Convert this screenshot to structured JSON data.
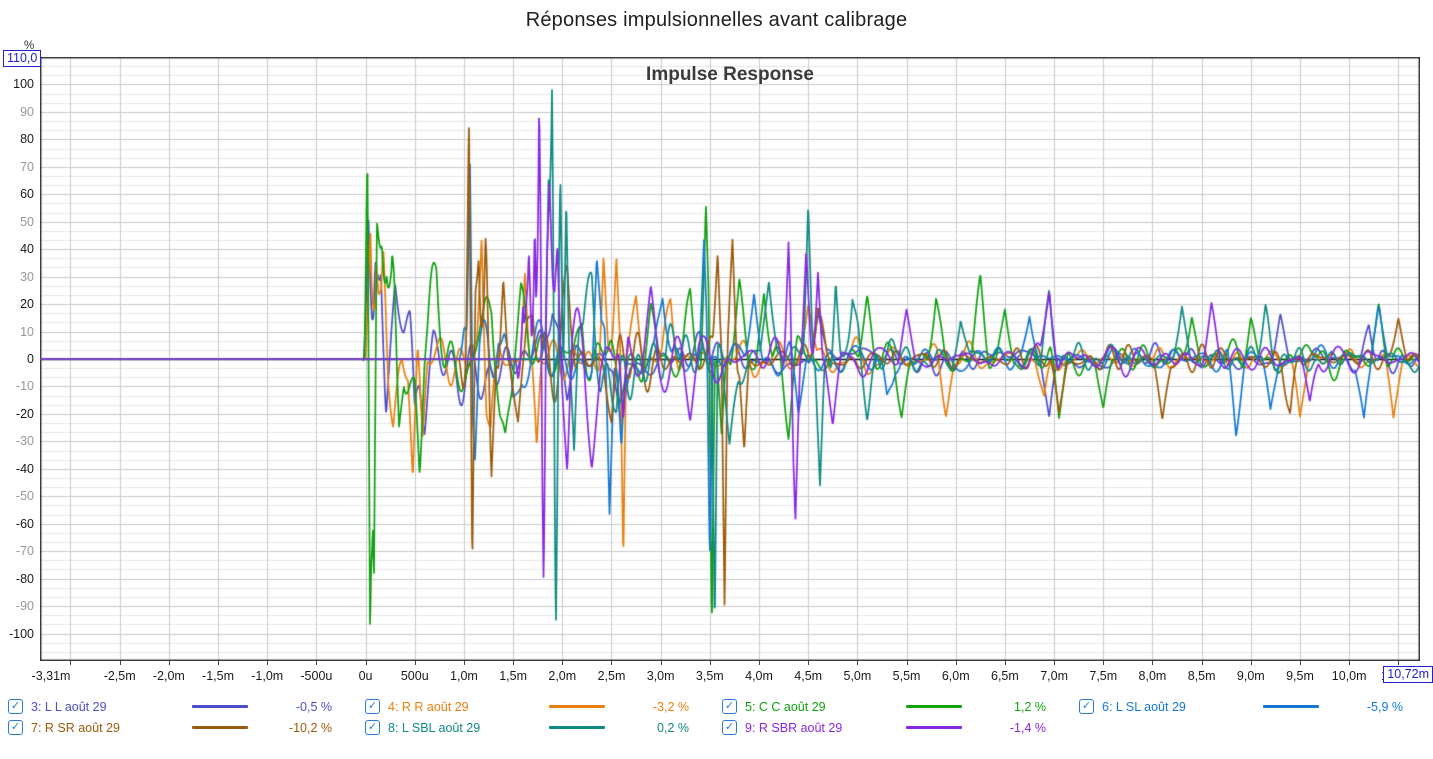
{
  "page": {
    "title": "Réponses impulsionnelles avant calibrage"
  },
  "axis_fields": {
    "y_max": "110,0",
    "x_max": "10,72m"
  },
  "legend": {
    "check_glyph": "✓",
    "checkbox_color": "#2b7bd8"
  },
  "chart_data": {
    "type": "line",
    "title": "Impulse Response",
    "ylabel": "%",
    "xlabel": "",
    "x_unit": "ms",
    "x_range": [
      -3.31,
      10.72
    ],
    "y_range": [
      -110,
      110
    ],
    "y_tick_step": 10,
    "y_tick_labels": [
      "100",
      "90",
      "80",
      "70",
      "60",
      "50",
      "40",
      "30",
      "20",
      "10",
      "0",
      "-10",
      "-20",
      "-30",
      "-40",
      "-50",
      "-60",
      "-70",
      "-80",
      "-90",
      "-100"
    ],
    "x_ticks": [
      {
        "ms": -3.31,
        "label": "-3,31m"
      },
      {
        "ms": -2.5,
        "label": "-2,5m"
      },
      {
        "ms": -2.0,
        "label": "-2,0m"
      },
      {
        "ms": -1.5,
        "label": "-1,5m"
      },
      {
        "ms": -1.0,
        "label": "-1,0m"
      },
      {
        "ms": -0.5,
        "label": "-500u"
      },
      {
        "ms": 0,
        "label": "0u"
      },
      {
        "ms": 0.5,
        "label": "500u"
      },
      {
        "ms": 1.0,
        "label": "1,0m"
      },
      {
        "ms": 1.5,
        "label": "1,5m"
      },
      {
        "ms": 2.0,
        "label": "2,0m"
      },
      {
        "ms": 2.5,
        "label": "2,5m"
      },
      {
        "ms": 3.0,
        "label": "3,0m"
      },
      {
        "ms": 3.5,
        "label": "3,5m"
      },
      {
        "ms": 4.0,
        "label": "4,0m"
      },
      {
        "ms": 4.5,
        "label": "4,5m"
      },
      {
        "ms": 5.0,
        "label": "5,0m"
      },
      {
        "ms": 5.5,
        "label": "5,5m"
      },
      {
        "ms": 6.0,
        "label": "6,0m"
      },
      {
        "ms": 6.5,
        "label": "6,5m"
      },
      {
        "ms": 7.0,
        "label": "7,0m"
      },
      {
        "ms": 7.5,
        "label": "7,5m"
      },
      {
        "ms": 8.0,
        "label": "8,0m"
      },
      {
        "ms": 8.5,
        "label": "8,5m"
      },
      {
        "ms": 9.0,
        "label": "9,0m"
      },
      {
        "ms": 9.5,
        "label": "9,5m"
      },
      {
        "ms": 10.0,
        "label": "10,0m"
      },
      {
        "ms": 10.5,
        "label": "10,5m"
      }
    ],
    "grid": {
      "minor_y_step": 3.3333,
      "major_y_step": 10,
      "x_step": 0.5
    },
    "series": [
      {
        "name": "3: L L août 29",
        "percent": "-0,5 %",
        "color": "#4d4dc9",
        "checked": true,
        "arrival_ms": 0,
        "noise_amp": 7,
        "seed": 31,
        "peaks": [
          [
            0.03,
            58
          ],
          [
            0.065,
            -20
          ],
          [
            0.1,
            37
          ],
          [
            0.155,
            36
          ],
          [
            0.21,
            -26
          ],
          [
            0.3,
            20
          ],
          [
            0.5,
            -30
          ],
          [
            0.6,
            -24
          ],
          [
            1.9,
            16
          ],
          [
            2.05,
            -20
          ],
          [
            2.6,
            -18
          ],
          [
            4.6,
            20
          ],
          [
            6.95,
            -22
          ],
          [
            9.3,
            15
          ],
          [
            10.2,
            14
          ]
        ]
      },
      {
        "name": "4: R R août 29",
        "percent": "-3,2 %",
        "color": "#e8800f",
        "checked": true,
        "arrival_ms": 0,
        "noise_amp": 8,
        "seed": 42,
        "peaks": [
          [
            0.05,
            58
          ],
          [
            0.11,
            44
          ],
          [
            0.18,
            30
          ],
          [
            0.28,
            -22
          ],
          [
            0.48,
            -42
          ],
          [
            0.58,
            -32
          ],
          [
            1.18,
            48
          ],
          [
            1.27,
            -26
          ],
          [
            1.62,
            34
          ],
          [
            1.74,
            -34
          ],
          [
            2.42,
            38
          ],
          [
            2.55,
            37
          ],
          [
            2.62,
            -74
          ],
          [
            2.75,
            24
          ],
          [
            3.1,
            20
          ],
          [
            4.5,
            20
          ],
          [
            5.9,
            -16
          ],
          [
            6.9,
            -18
          ],
          [
            9.5,
            -22
          ],
          [
            10.45,
            -22
          ]
        ]
      },
      {
        "name": "5: C C août 29",
        "percent": "1,2 %",
        "color": "#10a010",
        "checked": true,
        "arrival_ms": 0,
        "noise_amp": 10,
        "seed": 53,
        "peaks": [
          [
            0.02,
            86
          ],
          [
            0.045,
            -108
          ],
          [
            0.085,
            -97
          ],
          [
            0.115,
            55
          ],
          [
            0.165,
            54
          ],
          [
            0.215,
            43
          ],
          [
            0.27,
            30
          ],
          [
            0.34,
            -32
          ],
          [
            0.55,
            -30
          ],
          [
            0.72,
            22
          ],
          [
            1.28,
            20
          ],
          [
            1.42,
            -22
          ],
          [
            1.58,
            18
          ],
          [
            2.2,
            24
          ],
          [
            2.58,
            -20
          ],
          [
            2.9,
            18
          ],
          [
            3.3,
            22
          ],
          [
            3.46,
            53
          ],
          [
            3.52,
            -100
          ],
          [
            3.62,
            -30
          ],
          [
            3.8,
            26
          ],
          [
            4.05,
            28
          ],
          [
            4.3,
            -26
          ],
          [
            5.1,
            20
          ],
          [
            5.45,
            -18
          ],
          [
            5.8,
            22
          ],
          [
            6.25,
            25
          ],
          [
            6.5,
            20
          ],
          [
            7.05,
            -24
          ],
          [
            7.5,
            -18
          ],
          [
            8.4,
            18
          ],
          [
            9.0,
            16
          ],
          [
            10.3,
            18
          ]
        ]
      },
      {
        "name": "6: L SL août 29",
        "percent": "-5,9 %",
        "color": "#1478d2",
        "checked": true,
        "arrival_ms": 0.95,
        "noise_amp": 7.5,
        "seed": 64,
        "peaks": [
          [
            1.06,
            72
          ],
          [
            1.11,
            -36
          ],
          [
            1.35,
            25
          ],
          [
            1.5,
            -22
          ],
          [
            2.35,
            30
          ],
          [
            2.48,
            -58
          ],
          [
            2.6,
            -30
          ],
          [
            3.02,
            22
          ],
          [
            3.44,
            47
          ],
          [
            3.5,
            -73
          ],
          [
            3.95,
            26
          ],
          [
            4.4,
            -22
          ],
          [
            5.3,
            -16
          ],
          [
            6.75,
            18
          ],
          [
            8.85,
            -26
          ],
          [
            9.2,
            -20
          ],
          [
            10.15,
            -24
          ],
          [
            10.3,
            20
          ]
        ]
      },
      {
        "name": "7: R SR août 29",
        "percent": "-10,2 %",
        "color": "#9c5a0c",
        "checked": true,
        "arrival_ms": 0.95,
        "noise_amp": 7.5,
        "seed": 75,
        "peaks": [
          [
            1.05,
            71
          ],
          [
            1.085,
            -100
          ],
          [
            1.15,
            40
          ],
          [
            1.22,
            48
          ],
          [
            1.28,
            -46
          ],
          [
            1.4,
            30
          ],
          [
            1.55,
            -26
          ],
          [
            1.7,
            24
          ],
          [
            2.05,
            26
          ],
          [
            2.5,
            -24
          ],
          [
            3.58,
            40
          ],
          [
            3.65,
            -92
          ],
          [
            3.73,
            38
          ],
          [
            3.85,
            -30
          ],
          [
            4.6,
            18
          ],
          [
            7.05,
            -20
          ],
          [
            8.1,
            -22
          ],
          [
            9.4,
            -20
          ],
          [
            10.5,
            16
          ]
        ]
      },
      {
        "name": "8: L SBL août 29",
        "percent": "0,2 %",
        "color": "#0f8a82",
        "checked": true,
        "arrival_ms": 1.78,
        "noise_amp": 7.5,
        "seed": 86,
        "peaks": [
          [
            1.86,
            62
          ],
          [
            1.895,
            101
          ],
          [
            1.935,
            -95
          ],
          [
            1.98,
            72
          ],
          [
            2.04,
            64
          ],
          [
            2.12,
            -44
          ],
          [
            2.3,
            26
          ],
          [
            2.55,
            -22
          ],
          [
            3.55,
            -100
          ],
          [
            3.7,
            -26
          ],
          [
            4.1,
            28
          ],
          [
            4.5,
            51
          ],
          [
            4.62,
            -40
          ],
          [
            4.78,
            32
          ],
          [
            4.95,
            26
          ],
          [
            5.1,
            -20
          ],
          [
            6.05,
            18
          ],
          [
            6.95,
            26
          ],
          [
            8.3,
            20
          ],
          [
            9.15,
            18
          ]
        ]
      },
      {
        "name": "9: R SBR août 29",
        "percent": "-1,4 %",
        "color": "#8727e2",
        "checked": true,
        "arrival_ms": 1.52,
        "noise_amp": 7.5,
        "seed": 97,
        "peaks": [
          [
            1.6,
            30
          ],
          [
            1.66,
            48
          ],
          [
            1.72,
            62
          ],
          [
            1.765,
            100
          ],
          [
            1.81,
            -92
          ],
          [
            1.87,
            46
          ],
          [
            1.95,
            40
          ],
          [
            2.05,
            -30
          ],
          [
            2.3,
            -24
          ],
          [
            2.62,
            -32
          ],
          [
            2.9,
            22
          ],
          [
            3.3,
            -20
          ],
          [
            4.3,
            51
          ],
          [
            4.37,
            -52
          ],
          [
            4.48,
            34
          ],
          [
            4.6,
            32
          ],
          [
            4.75,
            -24
          ],
          [
            5.5,
            16
          ],
          [
            6.95,
            28
          ],
          [
            8.6,
            18
          ],
          [
            9.6,
            -18
          ]
        ]
      }
    ]
  }
}
